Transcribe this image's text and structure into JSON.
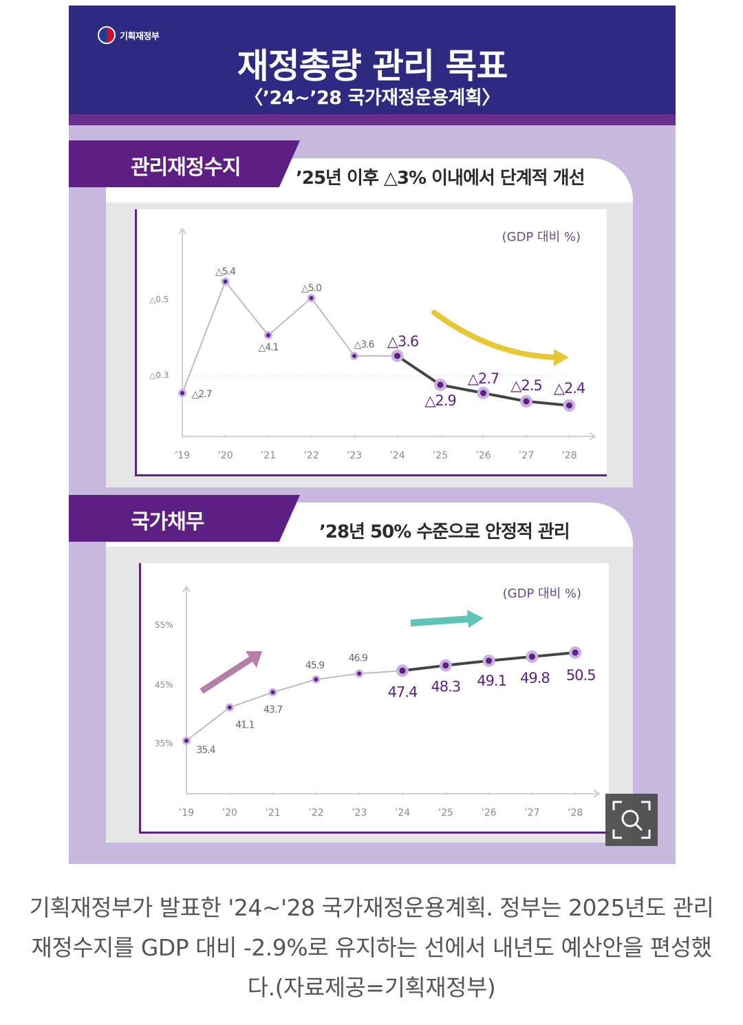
{
  "header": {
    "logo_text": "기획재정부",
    "title": "재정총량 관리 목표",
    "subtitle": "〈’24~’28 국가재정운용계획〉",
    "colors": {
      "header_bg": "#2e2a82",
      "accent": "#5d1f83",
      "card_bg": "#c8b8dd"
    }
  },
  "section1": {
    "tab_label": "관리재정수지",
    "headline": "’25년 이후 △3% 이내에서 단계적 개선",
    "unit": "(GDP 대비 %)"
  },
  "section2": {
    "tab_label": "국가채무",
    "headline": "’28년 50% 수준으로 안정적 관리",
    "unit": "(GDP 대비 %)"
  },
  "chart_data": [
    {
      "type": "line",
      "title": "관리재정수지",
      "ylabel": "(GDP 대비 %)",
      "x": [
        "’19",
        "’20",
        "’21",
        "’22",
        "’23",
        "’24",
        "’25",
        "’26",
        "’27",
        "’28"
      ],
      "y_ticks": [
        "△0.5",
        "△0.3"
      ],
      "series": [
        {
          "values": [
            -2.7,
            -5.4,
            -4.1,
            -5.0,
            -3.6,
            -3.6,
            -2.9,
            -2.7,
            -2.5,
            -2.4
          ],
          "labels": [
            "△2.7",
            "△5.4",
            "△4.1",
            "△5.0",
            "△3.6",
            "△3.6",
            "△2.9",
            "△2.7",
            "△2.5",
            "△2.4"
          ]
        }
      ],
      "plan_start_index": 5,
      "trend_arrow_color": "#e8c832"
    },
    {
      "type": "line",
      "title": "국가채무",
      "ylabel": "(GDP 대비 %)",
      "x": [
        "’19",
        "’20",
        "’21",
        "’22",
        "’23",
        "’24",
        "’25",
        "’26",
        "’27",
        "’28"
      ],
      "y_ticks": [
        "55%",
        "45%",
        "35%"
      ],
      "series": [
        {
          "values": [
            35.4,
            41.1,
            43.7,
            45.9,
            46.9,
            47.4,
            48.3,
            49.1,
            49.8,
            50.5
          ],
          "labels": [
            "35.4",
            "41.1",
            "43.7",
            "45.9",
            "46.9",
            "47.4",
            "48.3",
            "49.1",
            "49.8",
            "50.5"
          ]
        }
      ],
      "plan_start_index": 5,
      "trend_arrow_colors": [
        "#b57fa8",
        "#5ec4b8"
      ]
    }
  ],
  "caption": "기획재정부가 발표한 '24~'28 국가재정운용계획. 정부는 2025년도 관리재정수지를 GDP 대비 -2.9%로 유지하는 선에서 내년도 예산안을 편성했다.(자료제공=기획재정부)",
  "zoom_icon": "zoom-search-icon"
}
